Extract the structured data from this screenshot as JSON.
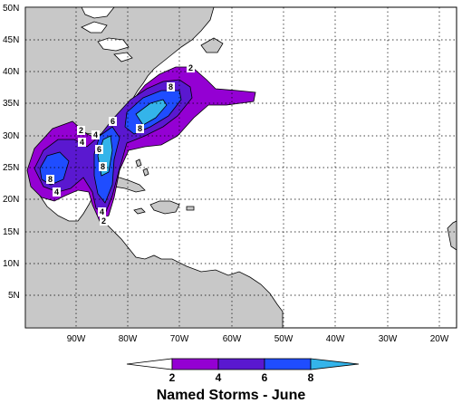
{
  "map": {
    "latitude_labels": [
      "50N",
      "45N",
      "40N",
      "35N",
      "30N",
      "25N",
      "20N",
      "15N",
      "10N",
      "5N"
    ],
    "longitude_labels": [
      "90W",
      "80W",
      "70W",
      "60W",
      "50W",
      "40W",
      "30W",
      "20W"
    ],
    "contour_labels": [
      "2",
      "2",
      "2",
      "4",
      "4",
      "4",
      "4",
      "6",
      "6",
      "8",
      "8",
      "8",
      "8"
    ],
    "colors": {
      "land": "#c8c8c8",
      "ocean": "#ffffff",
      "level_2_4": "#9400d3",
      "level_4_6": "#5a18d0",
      "level_6_8": "#1f4dff",
      "level_8_plus": "#34b4ea"
    }
  },
  "legend": {
    "tick_labels": [
      "2",
      "4",
      "6",
      "8"
    ],
    "title": "Named Storms - June"
  }
}
